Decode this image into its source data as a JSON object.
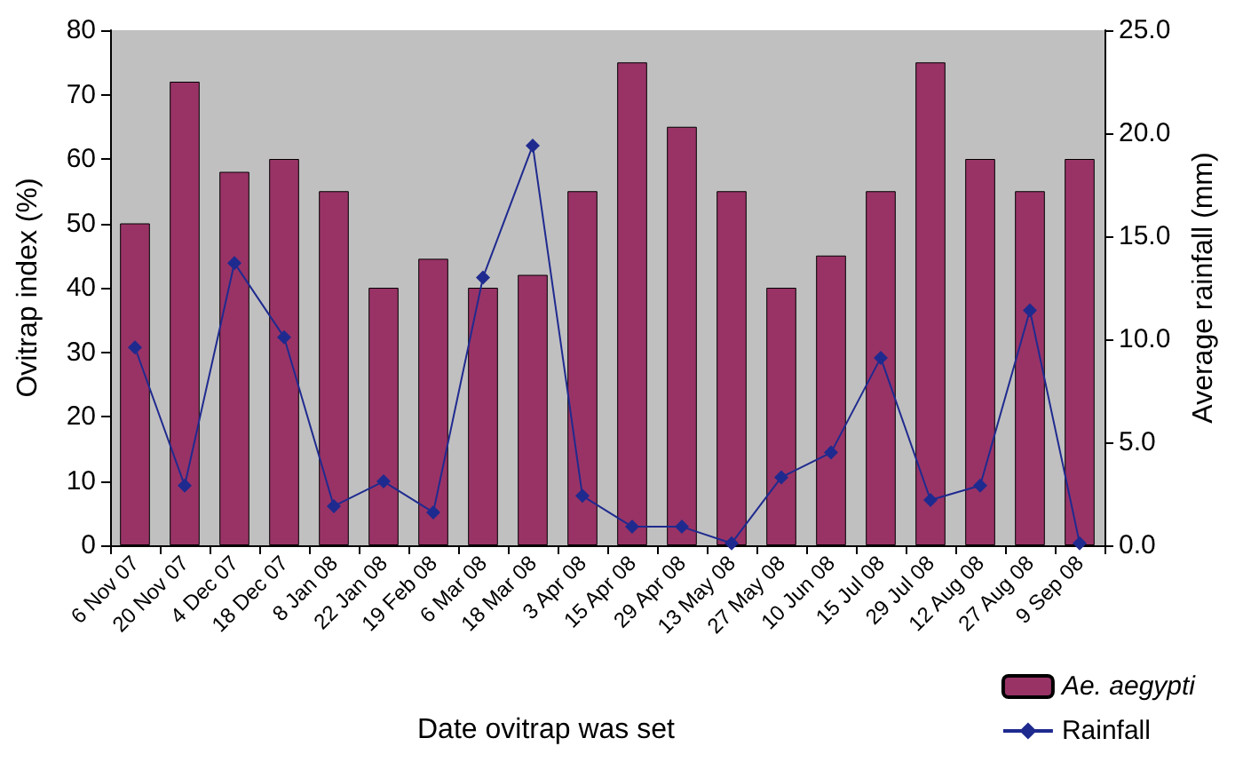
{
  "chart_data": {
    "type": "bar",
    "xlabel": "Date ovitrap was set",
    "ylabel": "Ovitrap index (%)",
    "y2label": "Average rainfall (mm)",
    "categories": [
      "6 Nov 07",
      "20 Nov 07",
      "4 Dec 07",
      "18 Dec 07",
      "8 Jan 08",
      "22 Jan 08",
      "19 Feb 08",
      "6 Mar 08",
      "18 Mar 08",
      "3 Apr 08",
      "15 Apr 08",
      "29 Apr 08",
      "13 May 08",
      "27 May 08",
      "10 Jun 08",
      "15 Jul 08",
      "29 Jul 08",
      "12 Aug 08",
      "27 Aug 08",
      "9 Sep 08"
    ],
    "series": [
      {
        "name": "Ae. aegypti",
        "color": "#993366",
        "values": [
          50,
          72,
          58,
          60,
          55,
          40,
          44.5,
          40,
          42,
          55,
          75,
          65,
          55,
          40,
          45,
          55,
          75,
          60,
          55,
          60
        ]
      },
      {
        "name": "Rainfall",
        "type": "line",
        "axis": "y2",
        "color": "#1f2a8f",
        "marker": "diamond",
        "values": [
          9.6,
          2.9,
          13.7,
          10.1,
          1.9,
          3.1,
          1.6,
          13.0,
          19.4,
          2.4,
          0.9,
          0.9,
          0.1,
          3.3,
          4.5,
          9.1,
          2.2,
          2.9,
          11.4,
          0.1
        ]
      }
    ],
    "ylim": [
      0,
      80
    ],
    "yticks": [
      0,
      10,
      20,
      30,
      40,
      50,
      60,
      70,
      80
    ],
    "y2lim": [
      0,
      25
    ],
    "y2ticks": [
      {
        "value": 0,
        "label": "0.0"
      },
      {
        "value": 5,
        "label": "5.0"
      },
      {
        "value": 10,
        "label": "10.0"
      },
      {
        "value": 15,
        "label": "15.0"
      },
      {
        "value": 20,
        "label": "20.0"
      },
      {
        "value": 25,
        "label": "25.0"
      }
    ],
    "legend": "bottom right",
    "grid": false
  }
}
